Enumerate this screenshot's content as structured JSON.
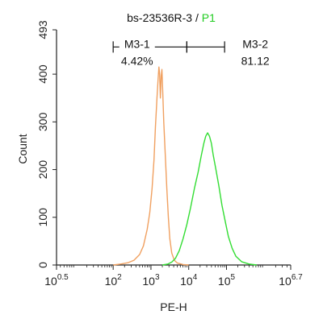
{
  "chart_data": {
    "type": "line",
    "title_sample": "bs-23536R-3",
    "title_sep": " / ",
    "title_gate": "P1",
    "title_gate_color": "#22cc22",
    "xlabel": "PE-H",
    "ylabel": "Count",
    "x_scale": "log",
    "xlim": [
      0.5,
      6.7
    ],
    "ylim": [
      0,
      493
    ],
    "x_ticks": [
      {
        "exp": 0.5,
        "label_base": "10",
        "label_exp": "0.5"
      },
      {
        "exp": 2,
        "label_base": "10",
        "label_exp": "2"
      },
      {
        "exp": 3,
        "label_base": "10",
        "label_exp": "3"
      },
      {
        "exp": 4,
        "label_base": "10",
        "label_exp": "4"
      },
      {
        "exp": 5,
        "label_base": "10",
        "label_exp": "5"
      },
      {
        "exp": 6.7,
        "label_base": "10",
        "label_exp": "6.7"
      }
    ],
    "y_ticks": [
      0,
      100,
      200,
      300,
      400,
      493
    ],
    "series": [
      {
        "color": "#f0a060",
        "points": [
          [
            2.0,
            0
          ],
          [
            2.2,
            2
          ],
          [
            2.4,
            5
          ],
          [
            2.55,
            10
          ],
          [
            2.7,
            22
          ],
          [
            2.8,
            40
          ],
          [
            2.9,
            75
          ],
          [
            2.97,
            110
          ],
          [
            3.03,
            160
          ],
          [
            3.08,
            220
          ],
          [
            3.12,
            290
          ],
          [
            3.16,
            350
          ],
          [
            3.19,
            390
          ],
          [
            3.21,
            415
          ],
          [
            3.23,
            400
          ],
          [
            3.25,
            350
          ],
          [
            3.27,
            395
          ],
          [
            3.29,
            410
          ],
          [
            3.31,
            370
          ],
          [
            3.34,
            300
          ],
          [
            3.38,
            230
          ],
          [
            3.42,
            160
          ],
          [
            3.46,
            100
          ],
          [
            3.5,
            55
          ],
          [
            3.55,
            25
          ],
          [
            3.62,
            10
          ],
          [
            3.7,
            4
          ],
          [
            3.85,
            1
          ],
          [
            4.0,
            0
          ]
        ]
      },
      {
        "color": "#33dd33",
        "points": [
          [
            3.3,
            0
          ],
          [
            3.45,
            2
          ],
          [
            3.55,
            6
          ],
          [
            3.65,
            14
          ],
          [
            3.75,
            30
          ],
          [
            3.85,
            55
          ],
          [
            3.95,
            85
          ],
          [
            4.05,
            120
          ],
          [
            4.15,
            160
          ],
          [
            4.25,
            195
          ],
          [
            4.33,
            228
          ],
          [
            4.4,
            255
          ],
          [
            4.45,
            270
          ],
          [
            4.5,
            277
          ],
          [
            4.55,
            270
          ],
          [
            4.6,
            255
          ],
          [
            4.65,
            230
          ],
          [
            4.72,
            200
          ],
          [
            4.8,
            165
          ],
          [
            4.88,
            125
          ],
          [
            4.97,
            90
          ],
          [
            5.05,
            60
          ],
          [
            5.15,
            35
          ],
          [
            5.25,
            18
          ],
          [
            5.4,
            7
          ],
          [
            5.6,
            2
          ],
          [
            5.8,
            0
          ]
        ]
      }
    ],
    "gates": [
      {
        "name": "M3-1",
        "percent": "4.42%",
        "x_start": 2.0,
        "x_end": 3.95,
        "y": 457
      },
      {
        "name": "M3-2",
        "percent": "81.12",
        "x_start": 3.95,
        "x_end": 4.95,
        "y": 457
      }
    ]
  }
}
